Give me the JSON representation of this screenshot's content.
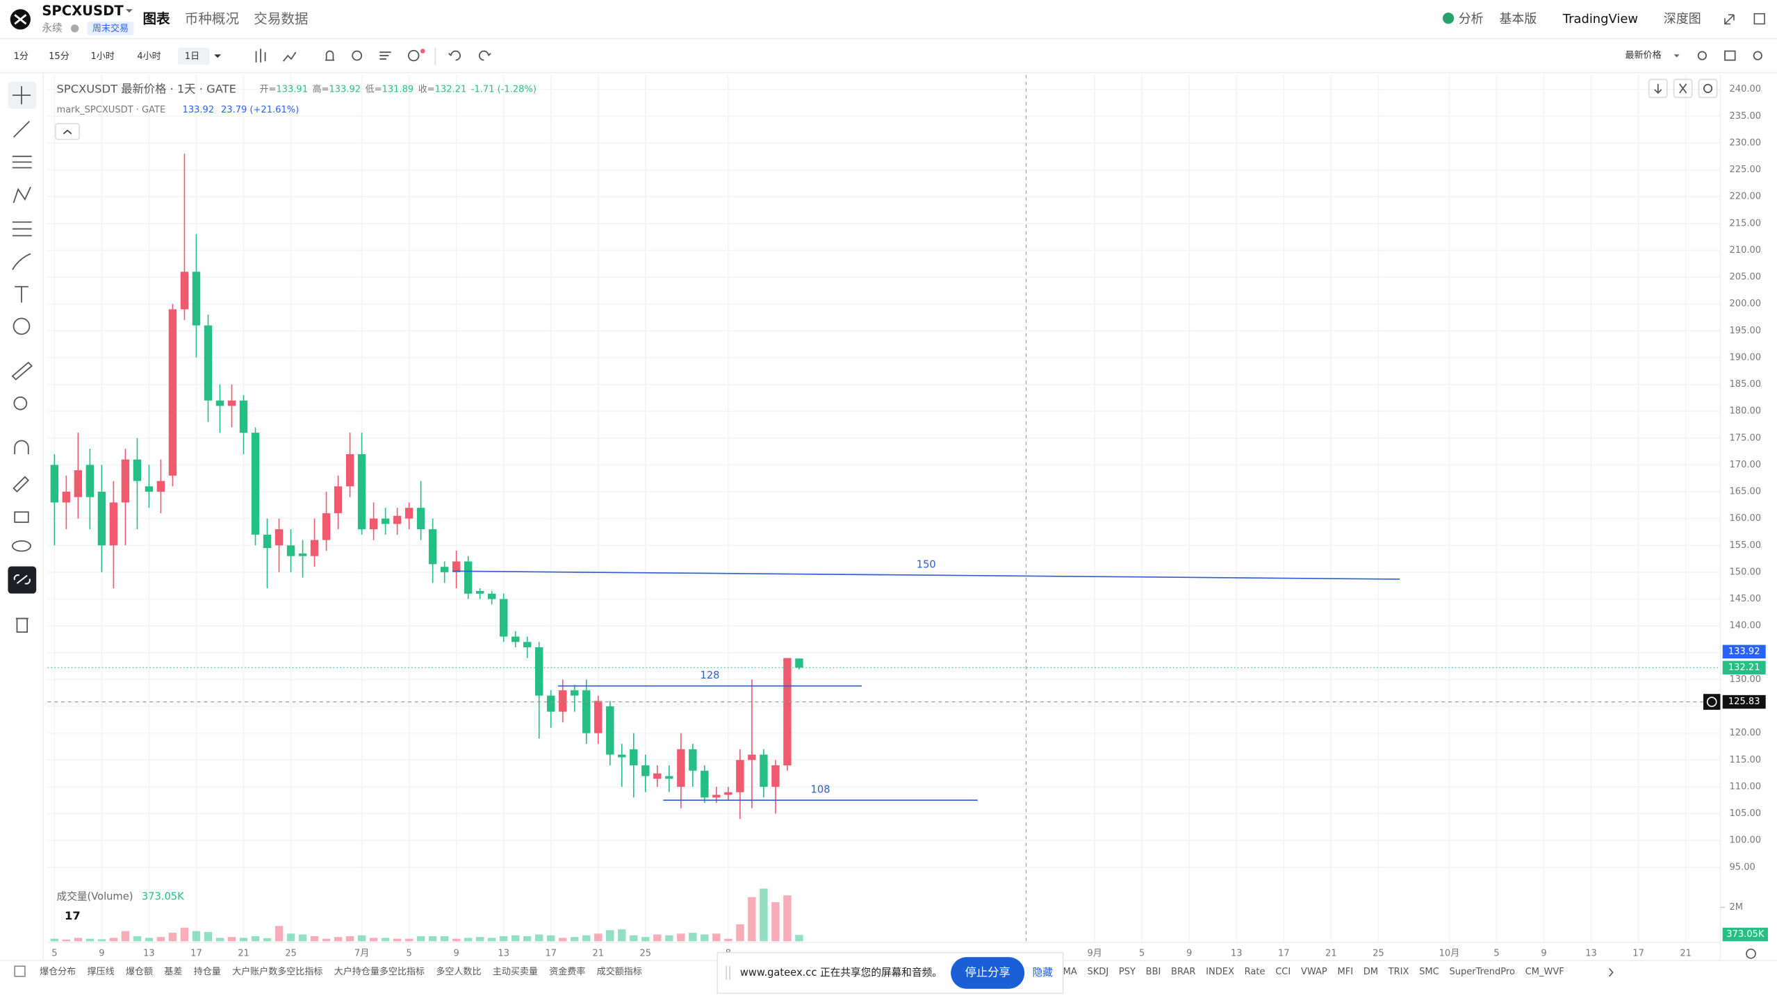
{
  "header": {
    "symbol": "SPCXUSDT",
    "subtitle": "永续",
    "badge": "周末交易",
    "tabs": [
      "图表",
      "币种概况",
      "交易数据"
    ],
    "right": [
      "分析",
      "基本版",
      "TradingView",
      "深度图"
    ]
  },
  "toolbar": {
    "intervals": [
      "1分",
      "15分",
      "1小时",
      "4小时",
      "1日"
    ],
    "price_type": "最新价格"
  },
  "legend": {
    "title": "SPCXUSDT 最新价格 · 1天 · GATE",
    "ohlc": [
      {
        "label": "开=",
        "value": "133.91"
      },
      {
        "label": "高=",
        "value": "133.92"
      },
      {
        "label": "低=",
        "value": "131.89"
      },
      {
        "label": "收=",
        "value": "132.21"
      }
    ],
    "change": "-1.71 (-1.28%)",
    "mark_title": "mark_SPCXUSDT · GATE",
    "mark_values": [
      "133.92",
      "23.79 (+21.61%)"
    ],
    "volume_title": "成交量(Volume)",
    "volume_value": "373.05K"
  },
  "chart_data": {
    "type": "candlestick",
    "x": [
      0,
      1,
      2,
      3,
      4,
      5,
      6,
      7,
      8,
      9,
      10,
      11,
      12,
      13,
      14,
      15,
      16,
      17,
      18,
      19,
      20,
      21,
      22,
      23,
      24,
      25,
      26,
      27,
      28,
      29,
      30,
      31,
      32,
      33,
      34,
      35,
      36,
      37,
      38,
      39,
      40,
      41,
      42,
      43,
      44,
      45,
      46,
      47,
      48,
      49,
      50,
      51,
      52,
      53,
      54,
      55,
      56,
      57,
      58,
      59,
      60,
      61,
      62,
      63
    ],
    "open": [
      170,
      163,
      164,
      170,
      165,
      155,
      163,
      171,
      166,
      165,
      168,
      199,
      206,
      196,
      182,
      181,
      182,
      176,
      157,
      155,
      155,
      153.5,
      153,
      156,
      161,
      166,
      172,
      158,
      160,
      159,
      160,
      162,
      158,
      151,
      150,
      152,
      146.5,
      146,
      145,
      138,
      137,
      136,
      127,
      124,
      128,
      128,
      120,
      125,
      116,
      117,
      114,
      111.5,
      112,
      110,
      117,
      113,
      108,
      108.5,
      109,
      115,
      116,
      110,
      114,
      133.91
    ],
    "high": [
      172,
      168,
      176,
      173,
      170,
      167,
      173,
      175,
      170,
      171,
      200,
      228,
      213,
      198,
      185,
      185,
      183,
      177,
      160,
      160,
      158,
      156,
      160,
      165,
      168,
      176,
      176,
      163,
      162,
      162,
      163,
      167,
      160,
      152,
      154,
      153,
      147,
      146.5,
      146,
      139,
      138,
      137,
      128,
      130,
      129,
      130,
      127,
      126,
      118,
      120,
      116,
      114,
      114,
      120,
      118,
      114,
      110,
      110,
      117,
      130,
      117,
      115,
      134,
      133.92
    ],
    "low": [
      155,
      158,
      160,
      158,
      150,
      147,
      155,
      158,
      162,
      161,
      166,
      197,
      190,
      178,
      176,
      177,
      172,
      155,
      147,
      150,
      150,
      149,
      151,
      154,
      158,
      164,
      157,
      156,
      157,
      157,
      158,
      156,
      148,
      148,
      147,
      145,
      145,
      144,
      137,
      136,
      134,
      119,
      121,
      122,
      124,
      118,
      118,
      114,
      110,
      108,
      109,
      110,
      109,
      106,
      110,
      107,
      107,
      107.5,
      104,
      106,
      108,
      105,
      113,
      131.89
    ],
    "close": [
      163,
      165,
      169,
      164,
      155,
      163,
      171,
      167,
      165,
      167,
      199,
      206,
      196,
      182,
      181,
      182,
      176,
      157,
      154.5,
      158,
      153,
      153,
      156,
      161,
      166,
      172,
      158,
      160,
      159,
      160.5,
      162,
      158,
      151.5,
      150,
      152,
      146,
      146,
      145,
      138,
      137,
      136,
      127,
      124,
      128,
      127,
      120,
      126,
      116,
      115.5,
      114,
      112,
      112.5,
      111.5,
      117,
      113,
      108,
      108.5,
      109,
      115,
      116,
      110,
      114,
      134,
      132.21
    ],
    "up_color": "#ef5a6f",
    "down_color": "#25bf85",
    "xlim": [
      -0.58,
      140.93
    ],
    "xticks": [
      {
        "value": 0,
        "label": "5"
      },
      {
        "value": 4,
        "label": "9"
      },
      {
        "value": 8,
        "label": "13"
      },
      {
        "value": 12,
        "label": "17"
      },
      {
        "value": 16,
        "label": "21"
      },
      {
        "value": 20,
        "label": "25"
      },
      {
        "value": 26,
        "label": "7月"
      },
      {
        "value": 30,
        "label": "5"
      },
      {
        "value": 34,
        "label": "9"
      },
      {
        "value": 38,
        "label": "13"
      },
      {
        "value": 42,
        "label": "17"
      },
      {
        "value": 46,
        "label": "21"
      },
      {
        "value": 50,
        "label": "25"
      },
      {
        "value": 57,
        "label": "8"
      },
      {
        "value": 88,
        "label": "9月"
      },
      {
        "value": 92,
        "label": "5"
      },
      {
        "value": 96,
        "label": "9"
      },
      {
        "value": 100,
        "label": "13"
      },
      {
        "value": 104,
        "label": "17"
      },
      {
        "value": 108,
        "label": "21"
      },
      {
        "value": 112,
        "label": "25"
      },
      {
        "value": 118,
        "label": "10月"
      },
      {
        "value": 122,
        "label": "5"
      },
      {
        "value": 126,
        "label": "9"
      },
      {
        "value": 130,
        "label": "13"
      },
      {
        "value": 134,
        "label": "17"
      },
      {
        "value": 138,
        "label": "21"
      }
    ],
    "ylim": [
      81,
      242.7
    ],
    "yticks": [
      {
        "value": 95,
        "label": "95.00"
      },
      {
        "value": 100,
        "label": "100.00"
      },
      {
        "value": 105,
        "label": "105.00"
      },
      {
        "value": 110,
        "label": "110.00"
      },
      {
        "value": 115,
        "label": "115.00"
      },
      {
        "value": 120,
        "label": "120.00"
      },
      {
        "value": 125,
        "label": "125.00"
      },
      {
        "value": 130,
        "label": "130.00"
      },
      {
        "value": 135,
        "label": "135.00"
      },
      {
        "value": 140,
        "label": "140.00"
      },
      {
        "value": 145,
        "label": "145.00"
      },
      {
        "value": 150,
        "label": "150.00"
      },
      {
        "value": 155,
        "label": "155.00"
      },
      {
        "value": 160,
        "label": "160.00"
      },
      {
        "value": 165,
        "label": "165.00"
      },
      {
        "value": 170,
        "label": "170.00"
      },
      {
        "value": 175,
        "label": "175.00"
      },
      {
        "value": 180,
        "label": "180.00"
      },
      {
        "value": 185,
        "label": "185.00"
      },
      {
        "value": 190,
        "label": "190.00"
      },
      {
        "value": 195,
        "label": "195.00"
      },
      {
        "value": 200,
        "label": "200.00"
      },
      {
        "value": 205,
        "label": "205.00"
      },
      {
        "value": 210,
        "label": "210.00"
      },
      {
        "value": 215,
        "label": "215.00"
      },
      {
        "value": 220,
        "label": "220.00"
      },
      {
        "value": 225,
        "label": "225.00"
      },
      {
        "value": 230,
        "label": "230.00"
      },
      {
        "value": 235,
        "label": "235.00"
      },
      {
        "value": 240,
        "label": "240.00"
      }
    ],
    "grid": true,
    "volume": {
      "values": [
        150000,
        100000,
        200000,
        150000,
        120000,
        200000,
        600000,
        300000,
        200000,
        250000,
        500000,
        800000,
        600000,
        550000,
        200000,
        250000,
        200000,
        300000,
        180000,
        900000,
        450000,
        400000,
        300000,
        150000,
        250000,
        300000,
        350000,
        200000,
        200000,
        150000,
        150000,
        300000,
        300000,
        300000,
        150000,
        200000,
        250000,
        200000,
        300000,
        350000,
        300000,
        400000,
        350000,
        200000,
        250000,
        350000,
        450000,
        650000,
        700000,
        350000,
        250000,
        400000,
        350000,
        450000,
        500000,
        400000,
        450000,
        150000,
        1000000,
        2600000,
        3100000,
        2300000,
        2700000,
        373050
      ],
      "ylim": [
        0,
        3200000
      ],
      "yticks": [
        {
          "value": 2000000,
          "label": "2M"
        }
      ]
    },
    "price_tags": {
      "mark": 133.92,
      "last": 132.21,
      "crosshair": 125.83
    },
    "mark_color": "#2962ff",
    "crosshair_x": 82.2,
    "drawing_color": "#2f5bd3",
    "drawings": [
      {
        "label": "150",
        "points": [
          [
            33.7,
            150.2
          ],
          [
            113.8,
            148.7
          ]
        ]
      },
      {
        "label": "128",
        "points": [
          [
            42.6,
            128.8
          ],
          [
            68.3,
            128.8
          ]
        ]
      },
      {
        "label": "108",
        "points": [
          [
            51.5,
            107.5
          ],
          [
            78.1,
            107.5
          ]
        ]
      }
    ]
  },
  "indicators_left": [
    "爆仓分布",
    "撑压线",
    "爆仓额",
    "基差",
    "持仓量",
    "大户账户数多空比指标",
    "大户持仓量多空比指标",
    "多空人数比",
    "主动买卖量",
    "资金费率",
    "成交额指标"
  ],
  "indicators_right": [
    "MA",
    "SKDJ",
    "PSY",
    "BBI",
    "BRAR",
    "INDEX",
    "Rate",
    "CCI",
    "VWAP",
    "MFI",
    "DM",
    "TRIX",
    "SMC",
    "SuperTrendPro",
    "CM_WVF"
  ],
  "share_bar": {
    "message": "www.gateex.cc 正在共享您的屏幕和音频。",
    "stop": "停止分享",
    "hide": "隐藏"
  }
}
